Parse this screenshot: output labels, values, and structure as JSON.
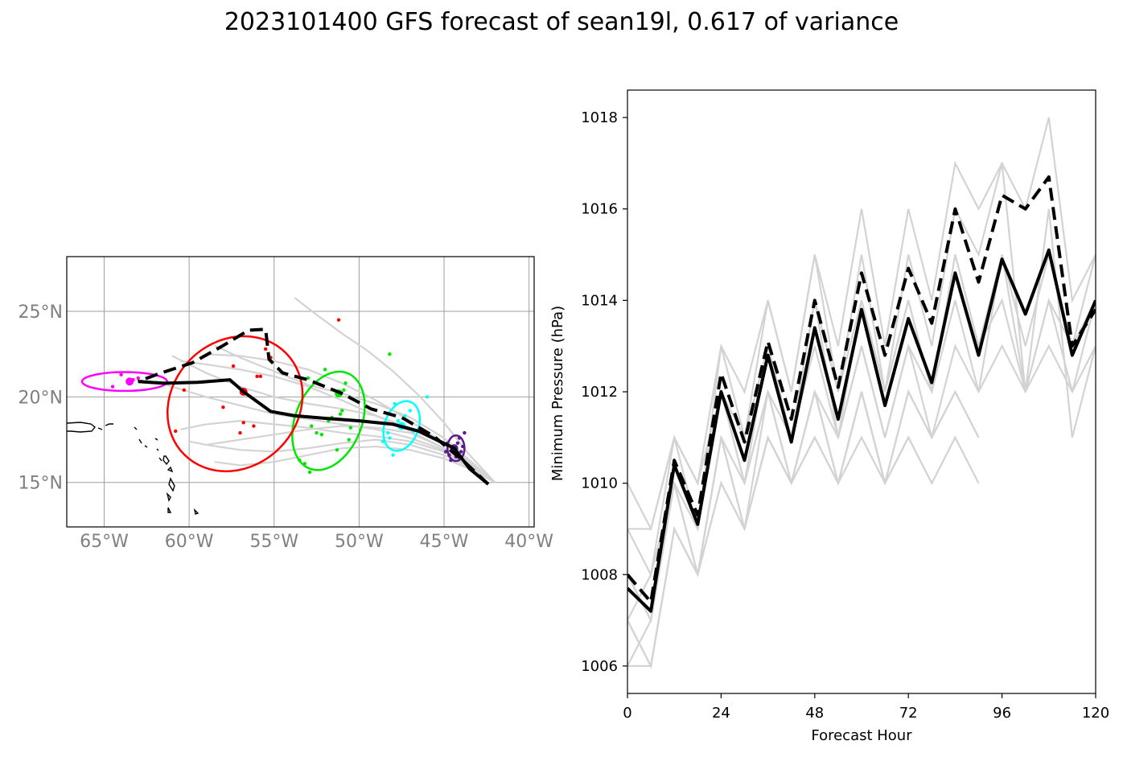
{
  "title": "2023101400 GFS forecast of sean19l, 0.617 of variance",
  "colors": {
    "ensemble": "#d3d3d3",
    "mean": "#000000",
    "cluster_0": "#5c1a8c",
    "cluster_1": "#00ffff",
    "cluster_2": "#00e600",
    "cluster_3": "#ff0000",
    "cluster_4": "#ff00ff"
  },
  "chart_data": [
    {
      "type": "scatter",
      "panel": "track map",
      "xlim": [
        -67.2,
        -39.7
      ],
      "ylim": [
        12.4,
        28.2
      ],
      "x_ticks": [
        -65,
        -60,
        -55,
        -50,
        -45,
        -40
      ],
      "x_tick_labels": [
        "65°W",
        "60°W",
        "55°W",
        "50°W",
        "45°W",
        "40°W"
      ],
      "y_ticks": [
        15,
        20,
        25
      ],
      "y_tick_labels": [
        "15°N",
        "20°N",
        "25°N"
      ],
      "grid": true,
      "solid_track": {
        "lon": [
          -42.4,
          -43.5,
          -44.4,
          -46.5,
          -48.0,
          -50.0,
          -52.0,
          -53.8,
          -55.2,
          -56.8,
          -57.6,
          -59.5,
          -61.5,
          -63.0
        ],
        "lat": [
          14.9,
          15.8,
          17.0,
          18.0,
          18.4,
          18.6,
          18.75,
          18.9,
          19.15,
          20.3,
          21.0,
          20.85,
          20.8,
          20.9
        ]
      },
      "dashed_track": {
        "lon": [
          -42.4,
          -43.8,
          -45.6,
          -47.5,
          -49.3,
          -51.0,
          -53.0,
          -54.5,
          -55.3,
          -55.5,
          -56.5,
          -58.0,
          -59.8,
          -61.8,
          -63.0
        ],
        "lat": [
          14.9,
          16.2,
          17.7,
          18.8,
          19.3,
          20.2,
          21.0,
          21.4,
          22.2,
          23.95,
          23.9,
          23.0,
          22.0,
          21.35,
          20.9
        ]
      },
      "ensemble_tracks": [
        {
          "lon": [
            -42.0,
            -43.5,
            -45.0,
            -47.0,
            -49.0,
            -51.0,
            -53.0,
            -55.0,
            -57.0,
            -59.0
          ],
          "lat": [
            15.0,
            16.0,
            17.0,
            17.9,
            18.2,
            18.3,
            18.1,
            17.8,
            17.5,
            17.2
          ]
        },
        {
          "lon": [
            -42.0,
            -43.5,
            -45.0,
            -47.0,
            -49.0,
            -51.0,
            -53.0,
            -55.0,
            -57.0,
            -59.0,
            -61.0
          ],
          "lat": [
            15.0,
            16.1,
            17.2,
            18.2,
            18.9,
            19.3,
            19.6,
            20.0,
            20.6,
            21.4,
            22.4
          ]
        },
        {
          "lon": [
            -42.0,
            -43.5,
            -45.0,
            -46.5,
            -48.0,
            -49.5,
            -51.0,
            -52.5,
            -53.8
          ],
          "lat": [
            15.0,
            16.6,
            18.5,
            20.1,
            21.5,
            22.7,
            23.7,
            24.8,
            25.8
          ]
        },
        {
          "lon": [
            -42.0,
            -43.5,
            -45.0,
            -47.0,
            -49.0,
            -51.0,
            -53.0,
            -55.0,
            -57.0,
            -59.0
          ],
          "lat": [
            15.0,
            16.2,
            17.3,
            18.6,
            19.8,
            20.8,
            21.6,
            22.1,
            22.4,
            22.5
          ]
        },
        {
          "lon": [
            -42.0,
            -43.5,
            -45.0,
            -47.0,
            -49.0,
            -51.0,
            -53.0,
            -55.0,
            -57.0,
            -59.0,
            -60.0
          ],
          "lat": [
            15.0,
            15.9,
            16.6,
            17.2,
            17.5,
            17.3,
            17.0,
            16.8,
            16.9,
            17.2,
            17.4
          ]
        },
        {
          "lon": [
            -42.0,
            -43.5,
            -45.0,
            -47.0,
            -49.0,
            -51.0,
            -53.0,
            -55.0,
            -57.0,
            -59.0,
            -61.0,
            -62.0
          ],
          "lat": [
            15.0,
            16.0,
            16.9,
            17.6,
            18.1,
            18.4,
            18.7,
            19.0,
            19.5,
            20.0,
            20.6,
            20.9
          ]
        },
        {
          "lon": [
            -42.0,
            -43.5,
            -45.0,
            -47.0,
            -49.0,
            -51.0,
            -53.0,
            -55.0,
            -57.0,
            -59.0,
            -60.5
          ],
          "lat": [
            15.0,
            16.1,
            17.0,
            18.0,
            18.9,
            19.8,
            20.6,
            21.2,
            21.6,
            21.9,
            22.1
          ]
        },
        {
          "lon": [
            -42.0,
            -43.5,
            -45.0,
            -47.0,
            -49.0,
            -51.0,
            -53.0,
            -55.0,
            -57.0,
            -58.5
          ],
          "lat": [
            15.0,
            15.8,
            16.4,
            16.9,
            17.1,
            17.0,
            16.6,
            16.2,
            16.0,
            16.2
          ]
        },
        {
          "lon": [
            -42.0,
            -43.5,
            -45.0,
            -47.0,
            -49.0,
            -51.0,
            -53.0,
            -55.0,
            -57.0,
            -58.5
          ],
          "lat": [
            15.0,
            16.3,
            17.6,
            18.8,
            19.6,
            20.2,
            20.7,
            21.5,
            22.3,
            23.0
          ]
        },
        {
          "lon": [
            -42.0,
            -43.5,
            -45.0,
            -47.0,
            -49.0,
            -51.0,
            -53.0,
            -55.0,
            -57.0,
            -59.0,
            -60.5
          ],
          "lat": [
            15.0,
            15.9,
            16.8,
            17.4,
            17.7,
            17.9,
            18.2,
            18.4,
            18.6,
            18.4,
            18.1
          ]
        }
      ],
      "cluster_points": [
        {
          "cluster": 0,
          "lon": [
            -44.5,
            -44.2,
            -44.0,
            -44.7,
            -44.3,
            -43.9,
            -44.8,
            -44.1,
            -44.6,
            -43.8,
            -44.4,
            -44.9
          ],
          "lat": [
            17.0,
            17.3,
            16.8,
            16.6,
            16.5,
            17.1,
            17.3,
            17.6,
            16.3,
            17.9,
            16.9,
            16.8
          ]
        },
        {
          "cluster": 1,
          "lon": [
            -47.5,
            -48.2,
            -47.0,
            -46.8,
            -47.9,
            -47.3,
            -48.6,
            -48.0,
            -46.0,
            -47.2,
            -47.7,
            -48.3
          ],
          "lat": [
            18.3,
            17.6,
            19.2,
            18.0,
            19.6,
            18.9,
            17.4,
            16.6,
            20.0,
            18.2,
            18.6,
            17.9
          ]
        },
        {
          "cluster": 2,
          "lon": [
            -51.8,
            -52.5,
            -51.0,
            -53.5,
            -50.5,
            -52.0,
            -51.3,
            -53.2,
            -50.8,
            -52.9,
            -51.6,
            -48.2,
            -50.9,
            -52.2,
            -51.1,
            -52.8,
            -53.0,
            -50.6
          ],
          "lat": [
            18.6,
            17.9,
            19.2,
            16.3,
            18.2,
            21.6,
            16.9,
            16.1,
            20.8,
            15.6,
            18.8,
            22.5,
            20.4,
            17.8,
            19.0,
            18.3,
            21.1,
            17.5
          ]
        },
        {
          "cluster": 3,
          "lon": [
            -55.2,
            -56.8,
            -60.3,
            -58.0,
            -56.0,
            -57.0,
            -55.5,
            -56.2,
            -60.8,
            -57.4,
            -55.8,
            -51.2
          ],
          "lat": [
            22.3,
            18.5,
            20.4,
            19.4,
            21.2,
            17.9,
            22.8,
            18.3,
            18.0,
            21.8,
            21.2,
            24.5
          ]
        },
        {
          "cluster": 4,
          "lon": [
            -63.5,
            -62.8,
            -64.5,
            -63.0,
            -64.0,
            -63.3
          ],
          "lat": [
            20.9,
            20.9,
            20.6,
            21.1,
            21.3,
            21.0
          ]
        }
      ],
      "cluster_means": [
        {
          "cluster": 0,
          "lon": -44.4,
          "lat": 17.0
        },
        {
          "cluster": 1,
          "lon": -47.5,
          "lat": 18.3
        },
        {
          "cluster": 2,
          "lon": -51.2,
          "lat": 20.2
        },
        {
          "cluster": 3,
          "lon": -56.8,
          "lat": 20.3
        },
        {
          "cluster": 4,
          "lon": -63.5,
          "lat": 20.9
        }
      ],
      "ellipses": [
        {
          "cluster": 0,
          "lon": -44.3,
          "lat": 17.0,
          "width_deg": 1.0,
          "height_deg": 1.5,
          "angle": 0
        },
        {
          "cluster": 1,
          "lon": -47.5,
          "lat": 18.3,
          "width_deg": 2.0,
          "height_deg": 3.0,
          "angle": 20
        },
        {
          "cluster": 2,
          "lon": -51.8,
          "lat": 18.6,
          "width_deg": 3.9,
          "height_deg": 6.0,
          "angle": 22
        },
        {
          "cluster": 3,
          "lon": -57.3,
          "lat": 19.6,
          "width_deg": 7.4,
          "height_deg": 8.4,
          "angle": 45
        },
        {
          "cluster": 4,
          "lon": -63.8,
          "lat": 20.9,
          "width_deg": 5.0,
          "height_deg": 1.1,
          "angle": 0
        }
      ]
    },
    {
      "type": "line",
      "panel": "minimum pressure",
      "xlabel": "Forecast Hour",
      "ylabel": "Minimum Pressure (hPa)",
      "xlim": [
        0,
        120
      ],
      "ylim": [
        1005.4,
        1018.6
      ],
      "x_ticks": [
        0,
        24,
        48,
        72,
        96,
        120
      ],
      "y_ticks": [
        1006,
        1008,
        1010,
        1012,
        1014,
        1016,
        1018
      ],
      "x": [
        0,
        6,
        12,
        18,
        24,
        30,
        36,
        42,
        48,
        54,
        60,
        66,
        72,
        78,
        84,
        90,
        96,
        102,
        108,
        114,
        120
      ],
      "solid_series": {
        "name": "",
        "values": [
          1007.7,
          1007.2,
          1010.4,
          1009.1,
          1012.0,
          1010.5,
          1012.8,
          1010.9,
          1013.4,
          1011.4,
          1013.8,
          1011.7,
          1013.6,
          1012.2,
          1014.6,
          1012.8,
          1014.9,
          1013.7,
          1015.1,
          1012.8,
          1014.0
        ]
      },
      "dashed_series": {
        "name": "",
        "values": [
          1008.0,
          1007.4,
          1010.5,
          1009.3,
          1012.4,
          1010.9,
          1013.1,
          1011.4,
          1014.0,
          1012.1,
          1014.6,
          1012.8,
          1014.7,
          1013.5,
          1016.0,
          1014.4,
          1016.3,
          1016.0,
          1016.7,
          1013.0,
          1013.8
        ]
      },
      "ensemble_series": [
        {
          "values": [
            1010,
            1009,
            1011,
            1010,
            1013,
            1012,
            1014,
            1012,
            1015,
            1013,
            1016,
            1013,
            1016,
            1014,
            1017,
            1016,
            1017,
            1016,
            1018,
            1014,
            1015
          ]
        },
        {
          "values": [
            1009,
            1009,
            1011,
            1009,
            1013,
            1011,
            1014,
            1012,
            1015,
            1012,
            1015,
            1012,
            1015,
            1013,
            1016,
            1015,
            1017,
            1012,
            1016,
            1011,
            1013
          ]
        },
        {
          "values": [
            1009,
            1008,
            1011,
            1010,
            1012,
            1011,
            1013,
            1011,
            1014,
            1012,
            1014,
            1012,
            1014,
            1012,
            1015,
            1013,
            1014,
            1012,
            1014,
            1013,
            1015
          ]
        },
        {
          "values": [
            1008,
            1007,
            1010,
            1009,
            1012,
            1010,
            1013,
            1011,
            1014,
            1011,
            1014,
            1012,
            1014,
            1012,
            1015,
            1013,
            1015,
            1013,
            1015,
            1013,
            1014
          ]
        },
        {
          "values": [
            1008,
            1007,
            1010,
            1009,
            1012,
            1010,
            1012,
            1011,
            1013,
            1011,
            1013,
            1011,
            1013,
            1012,
            1014,
            1012,
            1015,
            1012,
            1014,
            1012,
            1014
          ]
        },
        {
          "values": [
            1007,
            1008,
            1010,
            1008,
            1011,
            1010,
            1012,
            1010,
            1012,
            1011,
            1013,
            1011,
            1013,
            1011,
            1013,
            1012,
            1013,
            1012,
            1013,
            1012,
            1013
          ]
        },
        {
          "values": [
            1007,
            1006,
            1009,
            1008,
            1011,
            1009,
            1012,
            1010,
            1012,
            1010,
            1012,
            1010,
            1012,
            1011,
            1012,
            1011
          ]
        },
        {
          "values": [
            1006,
            1006,
            1009,
            1008,
            1010,
            1009,
            1011,
            1010,
            1011,
            1010,
            1011,
            1010,
            1011,
            1010,
            1011,
            1010
          ]
        },
        {
          "values": [
            1006,
            1007,
            1010,
            1008,
            1011,
            1009,
            1011,
            1010,
            1011,
            1010,
            1012,
            1010,
            1011,
            1010
          ]
        },
        {
          "values": [
            1007,
            1006,
            1009,
            1008,
            1010,
            1009,
            1011,
            1010,
            1012,
            1010,
            1012,
            1010,
            1012,
            1011,
            1012,
            1011
          ]
        }
      ]
    }
  ]
}
